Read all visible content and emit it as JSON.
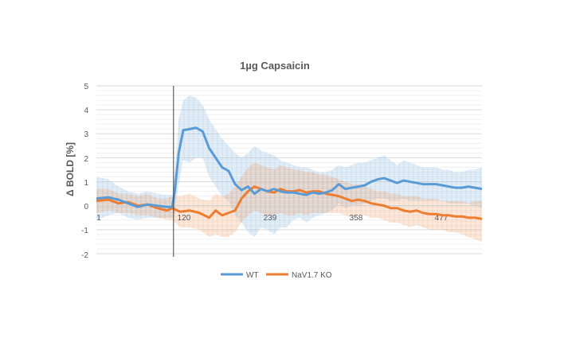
{
  "chart_data": {
    "type": "line",
    "title": "1µg Capsaicin",
    "xlabel": "",
    "ylabel": "Δ BOLD [%]",
    "ylim": [
      -2,
      5
    ],
    "y_ticks": [
      "5",
      "4",
      "3",
      "2",
      "1",
      "0",
      "-1",
      "-2"
    ],
    "x_tick_labels": [
      "1",
      "120",
      "239",
      "358",
      "477"
    ],
    "x_tick_values": [
      1,
      120,
      239,
      358,
      477
    ],
    "xlim": [
      1,
      596
    ],
    "stimulus_marker_x": 120,
    "grid": true,
    "legend_position": "bottom",
    "series": [
      {
        "name": "WT",
        "color": "#5b9bd5",
        "band_color": "#5b9bd5",
        "x": [
          1,
          20,
          35,
          50,
          65,
          80,
          95,
          110,
          118,
          122,
          128,
          135,
          145,
          155,
          165,
          175,
          185,
          195,
          205,
          215,
          225,
          235,
          245,
          255,
          265,
          275,
          285,
          295,
          305,
          315,
          325,
          335,
          345,
          355,
          365,
          375,
          385,
          395,
          405,
          415,
          425,
          435,
          445,
          455,
          465,
          475,
          485,
          495,
          505,
          515,
          525,
          535,
          545,
          555,
          565,
          575,
          585,
          596
        ],
        "values": [
          0.3,
          0.35,
          0.25,
          0.1,
          -0.05,
          0.05,
          0.0,
          -0.05,
          -0.05,
          0.6,
          2.2,
          3.15,
          3.2,
          3.25,
          3.1,
          2.4,
          2.0,
          1.6,
          1.45,
          0.9,
          0.65,
          0.8,
          0.5,
          0.7,
          0.6,
          0.7,
          0.6,
          0.55,
          0.55,
          0.5,
          0.45,
          0.55,
          0.5,
          0.55,
          0.65,
          0.9,
          0.7,
          0.75,
          0.8,
          0.85,
          1.0,
          1.1,
          1.15,
          1.05,
          0.95,
          1.05,
          1.0,
          0.95,
          0.9,
          0.9,
          0.9,
          0.85,
          0.8,
          0.75,
          0.75,
          0.8,
          0.75,
          0.7
        ],
        "upper": [
          1.2,
          1.1,
          0.8,
          0.6,
          0.5,
          0.6,
          0.5,
          0.45,
          0.45,
          1.5,
          3.6,
          4.4,
          4.6,
          4.5,
          4.2,
          3.6,
          3.2,
          2.8,
          2.5,
          2.2,
          2.0,
          2.2,
          2.5,
          2.3,
          2.2,
          2.1,
          1.9,
          1.8,
          1.7,
          1.6,
          1.6,
          1.5,
          1.4,
          1.4,
          1.5,
          1.7,
          1.6,
          1.7,
          1.8,
          1.8,
          1.9,
          2.0,
          2.1,
          1.9,
          1.7,
          1.9,
          1.8,
          1.7,
          1.6,
          1.6,
          1.6,
          1.5,
          1.5,
          1.4,
          1.4,
          1.5,
          1.5,
          1.6
        ],
        "lower": [
          -0.6,
          -0.4,
          -0.3,
          -0.5,
          -0.6,
          -0.5,
          -0.5,
          -0.5,
          -0.5,
          -0.3,
          0.9,
          1.9,
          1.8,
          2.0,
          2.0,
          1.2,
          0.8,
          0.4,
          0.2,
          -0.4,
          -0.7,
          -1.1,
          -1.3,
          -0.9,
          -1.0,
          -1.2,
          -0.9,
          -0.9,
          -0.6,
          -0.5,
          -0.7,
          -0.5,
          -0.4,
          -0.3,
          -0.2,
          0.1,
          -0.1,
          0.0,
          0.0,
          0.1,
          0.2,
          0.3,
          0.3,
          0.2,
          0.2,
          0.3,
          0.2,
          0.2,
          0.2,
          0.2,
          0.2,
          0.2,
          0.1,
          0.1,
          0.1,
          0.1,
          0.0,
          -0.1
        ]
      },
      {
        "name": "NaV1.7 KO",
        "color": "#ed7d31",
        "band_color": "#ed7d31",
        "x": [
          1,
          20,
          35,
          50,
          65,
          80,
          95,
          110,
          118,
          130,
          145,
          160,
          175,
          185,
          195,
          205,
          215,
          225,
          235,
          245,
          255,
          265,
          275,
          285,
          295,
          305,
          315,
          325,
          335,
          345,
          355,
          365,
          375,
          385,
          395,
          405,
          415,
          425,
          435,
          445,
          455,
          465,
          475,
          485,
          495,
          505,
          515,
          525,
          535,
          545,
          555,
          565,
          575,
          585,
          596
        ],
        "values": [
          0.2,
          0.25,
          0.1,
          0.15,
          0.0,
          0.05,
          -0.1,
          -0.2,
          -0.1,
          -0.25,
          -0.2,
          -0.3,
          -0.5,
          -0.2,
          -0.4,
          -0.3,
          -0.2,
          0.3,
          0.6,
          0.8,
          0.7,
          0.6,
          0.55,
          0.7,
          0.6,
          0.6,
          0.65,
          0.55,
          0.6,
          0.6,
          0.5,
          0.45,
          0.4,
          0.3,
          0.2,
          0.25,
          0.2,
          0.1,
          0.05,
          0.0,
          -0.1,
          -0.1,
          -0.2,
          -0.25,
          -0.2,
          -0.3,
          -0.35,
          -0.35,
          -0.4,
          -0.4,
          -0.45,
          -0.45,
          -0.5,
          -0.5,
          -0.55
        ],
        "upper": [
          0.7,
          0.7,
          0.5,
          0.5,
          0.4,
          0.5,
          0.3,
          0.3,
          0.4,
          0.4,
          0.5,
          0.3,
          0.2,
          0.5,
          0.4,
          0.5,
          0.8,
          1.2,
          1.6,
          1.8,
          1.7,
          1.6,
          1.5,
          1.7,
          1.6,
          1.5,
          1.5,
          1.4,
          1.4,
          1.3,
          1.3,
          1.2,
          1.1,
          1.0,
          0.9,
          0.9,
          0.8,
          0.7,
          0.6,
          0.6,
          0.5,
          0.5,
          0.4,
          0.4,
          0.4,
          0.3,
          0.3,
          0.3,
          0.2,
          0.2,
          0.2,
          0.2,
          0.1,
          0.2,
          0.2
        ],
        "lower": [
          -0.3,
          -0.2,
          -0.3,
          -0.3,
          -0.4,
          -0.4,
          -0.5,
          -0.6,
          -0.6,
          -0.9,
          -0.9,
          -1.0,
          -1.3,
          -1.2,
          -1.3,
          -1.3,
          -1.1,
          -0.7,
          -0.4,
          -0.2,
          -0.3,
          -0.4,
          -0.4,
          -0.3,
          -0.4,
          -0.4,
          -0.3,
          -0.4,
          -0.3,
          -0.3,
          -0.3,
          -0.3,
          -0.3,
          -0.4,
          -0.5,
          -0.4,
          -0.4,
          -0.5,
          -0.5,
          -0.6,
          -0.7,
          -0.7,
          -0.8,
          -0.9,
          -0.8,
          -0.9,
          -1.0,
          -1.0,
          -1.0,
          -1.1,
          -1.1,
          -1.2,
          -1.3,
          -1.4,
          -1.5
        ]
      }
    ]
  }
}
